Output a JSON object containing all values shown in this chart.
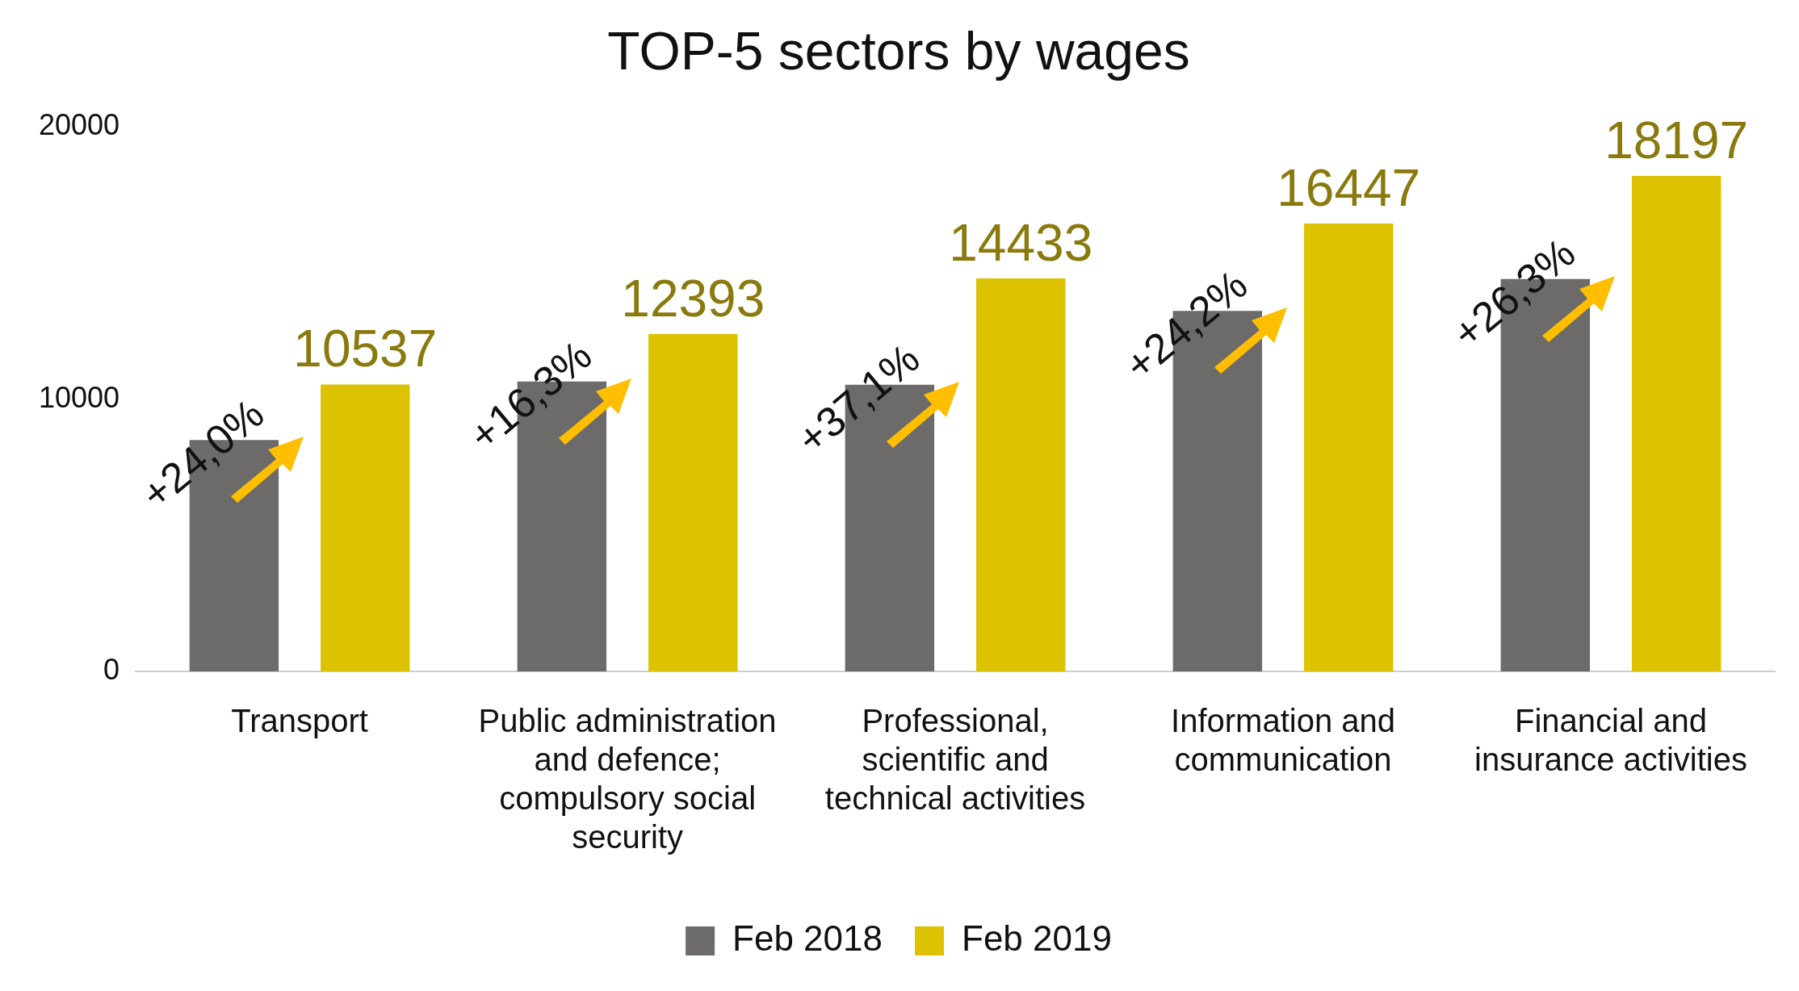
{
  "chart_data": {
    "type": "bar",
    "title": "TOP-5 sectors by wages",
    "categories": [
      "Transport",
      "Public administration and defence; compulsory social security",
      "Professional, scientific and technical activities",
      "Information and communication",
      "Financial and insurance activities"
    ],
    "series": [
      {
        "name": "Feb 2018",
        "color": "#6d6b69",
        "values": [
          8500,
          10650,
          10530,
          13240,
          14410
        ]
      },
      {
        "name": "Feb 2019",
        "color": "#dcc200",
        "values": [
          10537,
          12393,
          14433,
          16447,
          18197
        ],
        "value_labels": [
          "10537",
          "12393",
          "14433",
          "16447",
          "18197"
        ]
      }
    ],
    "ylim": [
      0,
      20000
    ],
    "yticks": [
      0,
      10000,
      20000
    ],
    "grid": false,
    "legend": "bottom",
    "annotations": [
      "+24,0%",
      "+16,3%",
      "+37,1%",
      "+24,2%",
      "+26,3%"
    ]
  }
}
